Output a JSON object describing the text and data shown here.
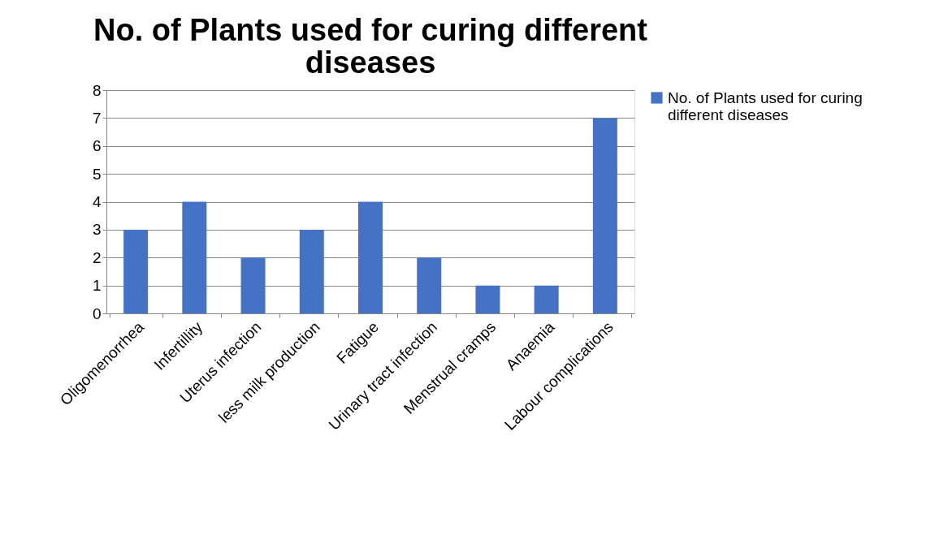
{
  "chart_data": {
    "type": "bar",
    "title": "No. of Plants used for curing different diseases",
    "categories": [
      "Oligomenorrhea",
      "Infertillity",
      "Uterus infection",
      "less milk production",
      "Fatigue",
      "Urinary tract infection",
      "Menstrual cramps",
      "Anaemia",
      "Labour complications"
    ],
    "series": [
      {
        "name": "No. of Plants used for curing different diseases",
        "color": "#4472c4",
        "values": [
          3,
          4,
          2,
          3,
          4,
          2,
          1,
          1,
          7
        ]
      }
    ],
    "ylim": [
      0,
      8
    ],
    "yticks": [
      0,
      1,
      2,
      3,
      4,
      5,
      6,
      7,
      8
    ],
    "grid": "y",
    "legend": "right"
  }
}
